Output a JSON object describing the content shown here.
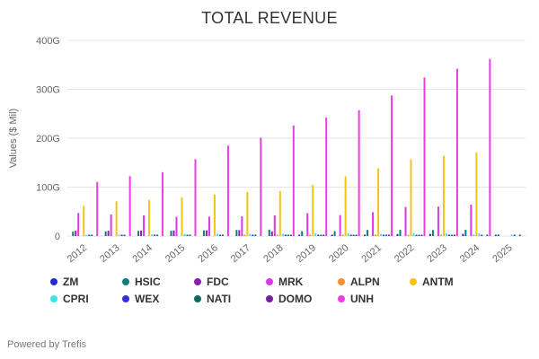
{
  "chart_data": {
    "type": "bar",
    "title": "TOTAL REVENUE",
    "xlabel": "",
    "ylabel": "Values ($ Mil)",
    "ylim": [
      0,
      400
    ],
    "grid": true,
    "legend_position": "bottom",
    "yticks": [
      {
        "value": 0,
        "label": "0"
      },
      {
        "value": 100,
        "label": "100G"
      },
      {
        "value": 200,
        "label": "200G"
      },
      {
        "value": 300,
        "label": "300G"
      },
      {
        "value": 400,
        "label": "400G"
      }
    ],
    "categories": [
      "2012",
      "2013",
      "2014",
      "2015",
      "2016",
      "2017",
      "2018",
      "2019",
      "2020",
      "2021",
      "2022",
      "2023",
      "2024",
      "2025"
    ],
    "series": [
      {
        "name": "ZM",
        "color": "#2727d8",
        "values": [
          0,
          0,
          0,
          0,
          0,
          0,
          0,
          0.3,
          0.6,
          2.7,
          4.1,
          4.4,
          4.5,
          1.2
        ]
      },
      {
        "name": "HSIC",
        "color": "#0e7d72",
        "values": [
          8.9,
          9.6,
          10.4,
          10.6,
          11.6,
          12.5,
          13.2,
          10.0,
          10.1,
          12.4,
          12.6,
          12.3,
          12.7,
          3.2
        ]
      },
      {
        "name": "FDC",
        "color": "#8a1fb0",
        "values": [
          10.7,
          10.8,
          11.2,
          11.5,
          11.6,
          12.1,
          9.5,
          0,
          0,
          0,
          0,
          0,
          0,
          0
        ]
      },
      {
        "name": "MRK",
        "color": "#d83ae8",
        "values": [
          47.3,
          44.0,
          42.2,
          39.5,
          39.8,
          40.1,
          42.3,
          46.8,
          43.0,
          48.7,
          59.3,
          60.1,
          64.2,
          0
        ]
      },
      {
        "name": "ALPN",
        "color": "#f59130",
        "values": [
          0,
          0,
          0,
          0,
          0,
          0.02,
          0.03,
          0.05,
          0.04,
          0.06,
          0.04,
          0.05,
          0.03,
          0
        ]
      },
      {
        "name": "ANTM",
        "color": "#f3c513",
        "values": [
          61.7,
          71.0,
          73.9,
          79.2,
          84.9,
          90.0,
          92.1,
          104.2,
          121.9,
          138.6,
          156.6,
          164.0,
          171.0,
          0
        ]
      },
      {
        "name": "CPRI",
        "color": "#3ce3e8",
        "values": [
          1.3,
          2.2,
          3.2,
          4.4,
          4.7,
          4.5,
          4.7,
          5.2,
          5.6,
          4.1,
          5.7,
          5.6,
          5.2,
          1.0
        ]
      },
      {
        "name": "WEX",
        "color": "#3232d8",
        "values": [
          0.6,
          0.7,
          0.8,
          0.9,
          1.0,
          1.2,
          1.5,
          1.7,
          1.6,
          1.9,
          2.4,
          2.5,
          2.6,
          0.6
        ]
      },
      {
        "name": "NATI",
        "color": "#0a6a5f",
        "values": [
          1.1,
          1.2,
          1.2,
          1.2,
          1.2,
          1.3,
          1.4,
          1.4,
          1.3,
          1.5,
          1.7,
          1.7,
          0,
          0
        ]
      },
      {
        "name": "DOMO",
        "color": "#781fa0",
        "values": [
          0,
          0,
          0,
          0,
          0,
          0,
          0.1,
          0.2,
          0.2,
          0.3,
          0.3,
          0.3,
          0.3,
          0.1
        ]
      },
      {
        "name": "UNH",
        "color": "#ee3ce4",
        "values": [
          110.6,
          122.5,
          130.5,
          157.1,
          184.8,
          201.2,
          226.2,
          242.2,
          257.1,
          287.6,
          324.2,
          342.0,
          362.1,
          0
        ]
      }
    ],
    "legend_rows": [
      [
        "ZM",
        "HSIC",
        "FDC",
        "MRK",
        "ALPN",
        "ANTM"
      ],
      [
        "CPRI",
        "WEX",
        "NATI",
        "DOMO",
        "UNH"
      ]
    ]
  },
  "footer": {
    "text": "Powered by Trefis"
  }
}
